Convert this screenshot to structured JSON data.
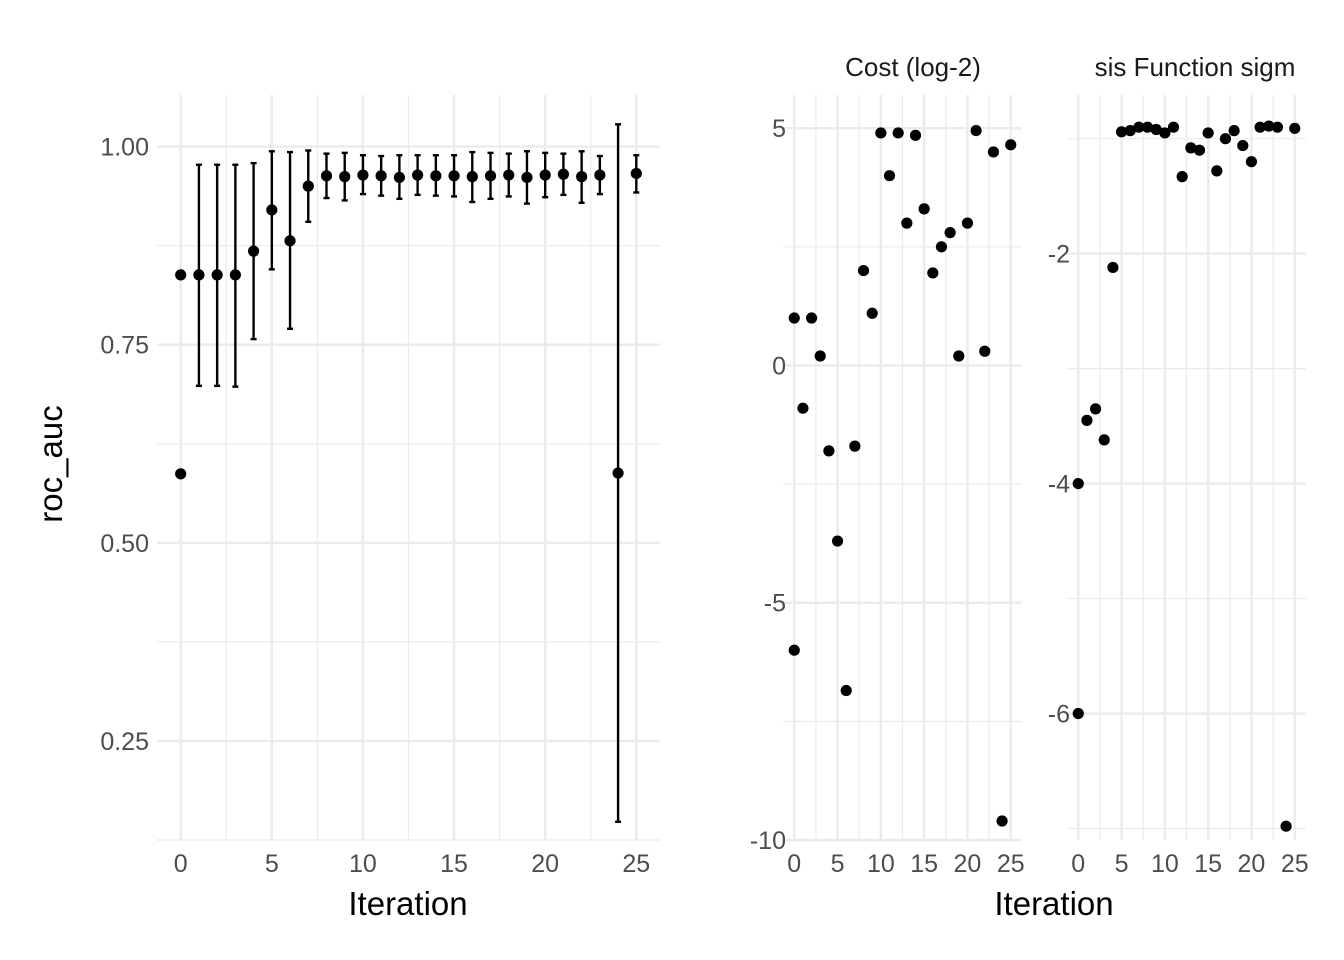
{
  "chart_data": [
    {
      "type": "scatter",
      "subtitle": "",
      "xlabel": "Iteration",
      "ylabel": "roc_auc",
      "xlim": [
        -1.3,
        26.3
      ],
      "ylim": [
        0.125,
        1.065
      ],
      "x_ticks": [
        0,
        5,
        10,
        15,
        20,
        25
      ],
      "y_ticks": [
        0.25,
        0.5,
        0.75,
        1.0
      ],
      "y_tick_labels": [
        "0.25",
        "0.50",
        "0.75",
        "1.00"
      ],
      "error_bars": true,
      "grid": true,
      "points": [
        {
          "x": 0,
          "y": 0.838
        },
        {
          "x": 0,
          "y": 0.587
        },
        {
          "x": 1,
          "y": 0.838,
          "lo": 0.698,
          "hi": 0.977
        },
        {
          "x": 2,
          "y": 0.838,
          "lo": 0.698,
          "hi": 0.977
        },
        {
          "x": 3,
          "y": 0.838,
          "lo": 0.697,
          "hi": 0.977
        },
        {
          "x": 4,
          "y": 0.868,
          "lo": 0.757,
          "hi": 0.979
        },
        {
          "x": 5,
          "y": 0.92,
          "lo": 0.845,
          "hi": 0.994
        },
        {
          "x": 6,
          "y": 0.881,
          "lo": 0.77,
          "hi": 0.993
        },
        {
          "x": 7,
          "y": 0.95,
          "lo": 0.905,
          "hi": 0.995
        },
        {
          "x": 8,
          "y": 0.963,
          "lo": 0.935,
          "hi": 0.991
        },
        {
          "x": 9,
          "y": 0.962,
          "lo": 0.932,
          "hi": 0.992
        },
        {
          "x": 10,
          "y": 0.964,
          "lo": 0.94,
          "hi": 0.989
        },
        {
          "x": 11,
          "y": 0.963,
          "lo": 0.938,
          "hi": 0.988
        },
        {
          "x": 12,
          "y": 0.961,
          "lo": 0.934,
          "hi": 0.989
        },
        {
          "x": 13,
          "y": 0.964,
          "lo": 0.939,
          "hi": 0.989
        },
        {
          "x": 14,
          "y": 0.963,
          "lo": 0.938,
          "hi": 0.989
        },
        {
          "x": 15,
          "y": 0.963,
          "lo": 0.937,
          "hi": 0.989
        },
        {
          "x": 16,
          "y": 0.962,
          "lo": 0.93,
          "hi": 0.993
        },
        {
          "x": 17,
          "y": 0.963,
          "lo": 0.934,
          "hi": 0.992
        },
        {
          "x": 18,
          "y": 0.964,
          "lo": 0.937,
          "hi": 0.991
        },
        {
          "x": 19,
          "y": 0.961,
          "lo": 0.928,
          "hi": 0.994
        },
        {
          "x": 20,
          "y": 0.964,
          "lo": 0.936,
          "hi": 0.992
        },
        {
          "x": 21,
          "y": 0.965,
          "lo": 0.939,
          "hi": 0.991
        },
        {
          "x": 22,
          "y": 0.962,
          "lo": 0.929,
          "hi": 0.994
        },
        {
          "x": 23,
          "y": 0.964,
          "lo": 0.94,
          "hi": 0.988
        },
        {
          "x": 24,
          "y": 0.588,
          "lo": 0.148,
          "hi": 1.028
        },
        {
          "x": 25,
          "y": 0.966,
          "lo": 0.942,
          "hi": 0.989
        }
      ]
    },
    {
      "type": "scatter",
      "title": "Cost (log-2)",
      "xlabel": "Iteration",
      "ylabel": "",
      "xlim": [
        -1.3,
        26.3
      ],
      "ylim": [
        -10.0,
        5.7
      ],
      "x_ticks": [
        0,
        5,
        10,
        15,
        20,
        25
      ],
      "y_ticks": [
        -10,
        -5,
        0,
        5
      ],
      "grid": true,
      "points": [
        {
          "x": 0,
          "y": 1.0
        },
        {
          "x": 0,
          "y": -6.0
        },
        {
          "x": 1,
          "y": -0.9
        },
        {
          "x": 2,
          "y": 1.0
        },
        {
          "x": 3,
          "y": 0.2
        },
        {
          "x": 4,
          "y": -1.8
        },
        {
          "x": 5,
          "y": -3.7
        },
        {
          "x": 6,
          "y": -6.85
        },
        {
          "x": 7,
          "y": -1.7
        },
        {
          "x": 8,
          "y": 2.0
        },
        {
          "x": 9,
          "y": 1.1
        },
        {
          "x": 10,
          "y": 4.9
        },
        {
          "x": 11,
          "y": 4.0
        },
        {
          "x": 12,
          "y": 4.9
        },
        {
          "x": 13,
          "y": 3.0
        },
        {
          "x": 14,
          "y": 4.85
        },
        {
          "x": 15,
          "y": 3.3
        },
        {
          "x": 16,
          "y": 1.95
        },
        {
          "x": 17,
          "y": 2.5
        },
        {
          "x": 18,
          "y": 2.8
        },
        {
          "x": 19,
          "y": 0.2
        },
        {
          "x": 20,
          "y": 3.0
        },
        {
          "x": 21,
          "y": 4.95
        },
        {
          "x": 22,
          "y": 0.3
        },
        {
          "x": 23,
          "y": 4.5
        },
        {
          "x": 24,
          "y": -9.6
        },
        {
          "x": 25,
          "y": 4.65
        }
      ]
    },
    {
      "type": "scatter",
      "title": "sis Function sigm",
      "xlabel": "Iteration",
      "ylabel": "",
      "xlim": [
        -1.3,
        26.3
      ],
      "ylim": [
        -7.1,
        -0.62
      ],
      "x_ticks": [
        0,
        5,
        10,
        15,
        20,
        25
      ],
      "y_ticks": [
        -6,
        -4,
        -2
      ],
      "grid": true,
      "points": [
        {
          "x": 0,
          "y": -4.0
        },
        {
          "x": 0,
          "y": -6.0
        },
        {
          "x": 1,
          "y": -3.45
        },
        {
          "x": 2,
          "y": -3.35
        },
        {
          "x": 3,
          "y": -3.62
        },
        {
          "x": 4,
          "y": -2.12
        },
        {
          "x": 5,
          "y": -0.94
        },
        {
          "x": 6,
          "y": -0.93
        },
        {
          "x": 7,
          "y": -0.9
        },
        {
          "x": 8,
          "y": -0.9
        },
        {
          "x": 9,
          "y": -0.92
        },
        {
          "x": 10,
          "y": -0.95
        },
        {
          "x": 11,
          "y": -0.9
        },
        {
          "x": 12,
          "y": -1.33
        },
        {
          "x": 13,
          "y": -1.08
        },
        {
          "x": 14,
          "y": -1.1
        },
        {
          "x": 15,
          "y": -0.95
        },
        {
          "x": 16,
          "y": -1.28
        },
        {
          "x": 17,
          "y": -1.0
        },
        {
          "x": 18,
          "y": -0.93
        },
        {
          "x": 19,
          "y": -1.06
        },
        {
          "x": 20,
          "y": -1.2
        },
        {
          "x": 21,
          "y": -0.9
        },
        {
          "x": 22,
          "y": -0.89
        },
        {
          "x": 23,
          "y": -0.9
        },
        {
          "x": 24,
          "y": -6.98
        },
        {
          "x": 25,
          "y": -0.91
        }
      ]
    }
  ]
}
